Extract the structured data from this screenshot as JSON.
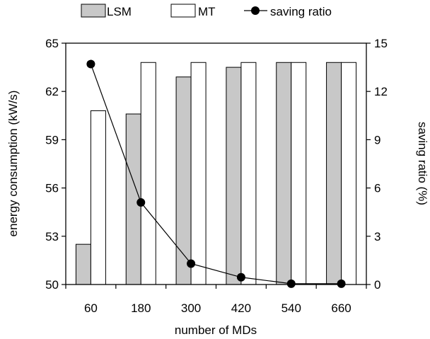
{
  "chart_data": {
    "type": "bar",
    "title": "",
    "categories": [
      "60",
      "180",
      "300",
      "420",
      "540",
      "660"
    ],
    "xlabel": "number of MDs",
    "ylabel": "energy consumption (kW/s)",
    "y2label": "saving ratio (%)",
    "ylim": [
      50,
      65
    ],
    "y2lim": [
      0,
      15
    ],
    "yticks": [
      "50",
      "53",
      "56",
      "59",
      "62",
      "65"
    ],
    "y2ticks": [
      "0",
      "3",
      "6",
      "9",
      "12",
      "15"
    ],
    "series": [
      {
        "name": "LSM",
        "kind": "bar",
        "axis": "left",
        "color": "#c8c8c8",
        "values": [
          52.5,
          60.6,
          62.9,
          63.5,
          63.8,
          63.8
        ]
      },
      {
        "name": "MT",
        "kind": "bar",
        "axis": "left",
        "color": "#ffffff",
        "values": [
          60.8,
          63.8,
          63.8,
          63.8,
          63.8,
          63.8
        ]
      },
      {
        "name": "saving ratio",
        "kind": "line",
        "axis": "right",
        "color": "#000000",
        "values": [
          13.7,
          5.1,
          1.3,
          0.45,
          0.05,
          0.05
        ]
      }
    ],
    "legend_position": "top",
    "grid": false
  }
}
